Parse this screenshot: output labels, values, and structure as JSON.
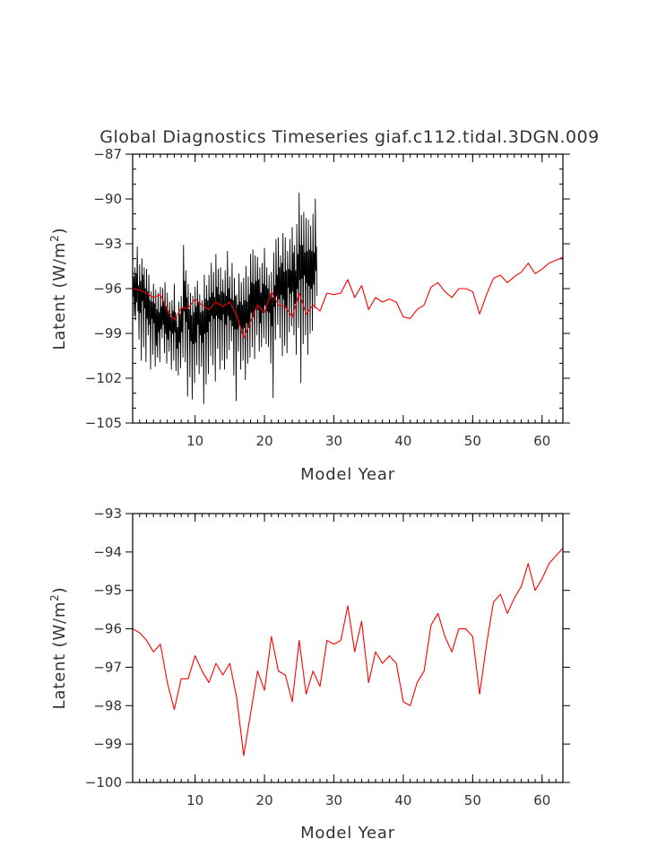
{
  "chart_data": [
    {
      "type": "line",
      "title": "Global Diagnostics Timeseries giaf.c112.tidal.3DGN.009",
      "xlabel": "Model Year",
      "ylabel": "Latent (W/m2)",
      "ylabel_main": "Latent (W/m",
      "ylabel_sup": "2",
      "ylabel_close": ")",
      "xlim": [
        1,
        63
      ],
      "ylim": [
        -105,
        -87
      ],
      "xticks": [
        10,
        20,
        30,
        40,
        50,
        60
      ],
      "yticks": [
        -105,
        -102,
        -99,
        -96,
        -93,
        -90,
        -87
      ],
      "xtick_labels": [
        "10",
        "20",
        "30",
        "40",
        "50",
        "60"
      ],
      "ytick_labels": [
        "−105",
        "−102",
        "−99",
        "−96",
        "−93",
        "−90",
        "−87"
      ],
      "grid": false,
      "series": [
        {
          "color": "#000000",
          "x_start": 1,
          "x_step": 0.0833,
          "values": [
            -94.3,
            -96.5,
            -95.2,
            -97.8,
            -94.6,
            -98.1,
            -95.0,
            -96.9,
            -93.2,
            -97.5,
            -95.8,
            -99.4,
            -94.4,
            -97.6,
            -95.5,
            -100.8,
            -94.0,
            -96.8,
            -95.1,
            -99.9,
            -94.6,
            -97.3,
            -96.0,
            -100.9,
            -94.7,
            -98.0,
            -96.2,
            -99.1,
            -95.1,
            -98.4,
            -96.8,
            -101.4,
            -96.2,
            -98.0,
            -96.9,
            -100.4,
            -95.7,
            -98.3,
            -97.0,
            -101.2,
            -96.1,
            -99.8,
            -97.4,
            -100.6,
            -96.3,
            -98.9,
            -97.6,
            -100.9,
            -95.9,
            -98.7,
            -97.2,
            -99.3,
            -96.0,
            -98.4,
            -96.9,
            -100.3,
            -95.6,
            -99.0,
            -97.3,
            -101.0,
            -96.3,
            -99.4,
            -97.6,
            -100.2,
            -96.9,
            -98.8,
            -97.9,
            -101.4,
            -96.8,
            -99.0,
            -97.5,
            -100.8,
            -95.7,
            -98.9,
            -97.6,
            -101.5,
            -97.8,
            -100.0,
            -98.6,
            -101.8,
            -96.9,
            -99.6,
            -97.7,
            -101.3,
            -96.5,
            -98.9,
            -97.3,
            -100.6,
            -93.1,
            -97.5,
            -95.5,
            -100.9,
            -94.8,
            -98.2,
            -96.6,
            -103.2,
            -95.7,
            -98.7,
            -97.4,
            -101.9,
            -96.3,
            -99.5,
            -97.8,
            -103.4,
            -96.5,
            -99.7,
            -97.6,
            -102.3,
            -95.9,
            -99.6,
            -97.2,
            -101.1,
            -95.5,
            -98.4,
            -96.9,
            -101.7,
            -96.4,
            -99.1,
            -97.6,
            -101.2,
            -96.8,
            -99.6,
            -97.5,
            -103.7,
            -95.1,
            -99.0,
            -96.7,
            -102.4,
            -95.8,
            -98.9,
            -96.8,
            -101.7,
            -95.1,
            -98.2,
            -96.6,
            -100.5,
            -94.3,
            -97.8,
            -96.3,
            -101.1,
            -94.9,
            -98.0,
            -96.6,
            -102.2,
            -93.7,
            -97.8,
            -95.9,
            -100.0,
            -94.7,
            -98.0,
            -96.4,
            -101.4,
            -94.6,
            -98.1,
            -96.2,
            -100.8,
            -95.4,
            -97.7,
            -96.3,
            -101.4,
            -94.8,
            -98.4,
            -96.5,
            -100.7,
            -93.5,
            -97.8,
            -96.0,
            -100.1,
            -95.2,
            -98.1,
            -96.7,
            -99.5,
            -94.3,
            -98.5,
            -96.8,
            -101.8,
            -95.3,
            -98.7,
            -96.5,
            -103.5,
            -96.4,
            -98.7,
            -97.1,
            -100.2,
            -95.0,
            -98.4,
            -96.9,
            -101.4,
            -95.6,
            -98.7,
            -97.1,
            -100.8,
            -95.3,
            -98.6,
            -96.8,
            -102.1,
            -94.5,
            -98.3,
            -96.9,
            -101.0,
            -95.2,
            -98.6,
            -96.4,
            -100.6,
            -93.7,
            -97.6,
            -95.6,
            -99.9,
            -93.4,
            -97.9,
            -95.7,
            -100.7,
            -93.8,
            -97.3,
            -95.5,
            -99.1,
            -93.9,
            -97.4,
            -95.4,
            -100.2,
            -94.6,
            -98.3,
            -96.3,
            -99.9,
            -94.3,
            -97.6,
            -95.7,
            -99.3,
            -93.3,
            -97.1,
            -95.8,
            -99.7,
            -94.6,
            -97.5,
            -96.0,
            -99.9,
            -95.1,
            -97.6,
            -96.4,
            -101.0,
            -94.9,
            -98.5,
            -96.6,
            -103.3,
            -93.6,
            -97.2,
            -95.8,
            -99.4,
            -92.7,
            -96.5,
            -95.1,
            -98.4,
            -92.6,
            -96.7,
            -94.6,
            -99.3,
            -93.8,
            -96.4,
            -94.3,
            -100.5,
            -92.3,
            -96.7,
            -94.9,
            -99.8,
            -92.6,
            -97.3,
            -94.8,
            -100.3,
            -93.5,
            -95.9,
            -94.7,
            -98.9,
            -92.7,
            -96.3,
            -94.8,
            -98.5,
            -91.9,
            -96.2,
            -93.6,
            -99.1,
            -93.1,
            -97.0,
            -94.8,
            -100.4,
            -91.7,
            -96.0,
            -93.7,
            -98.6,
            -89.6,
            -95.4,
            -93.1,
            -102.3,
            -91.1,
            -95.3,
            -93.1,
            -99.7,
            -90.9,
            -95.1,
            -93.6,
            -99.1,
            -91.3,
            -95.6,
            -93.5,
            -100.4,
            -91.4,
            -95.8,
            -93.4,
            -99.0,
            -91.8,
            -96.0,
            -93.5,
            -98.8,
            -91.0,
            -95.7,
            -93.6,
            -97.3,
            -90.0,
            -94.8,
            -93.2,
            -96.5
          ]
        },
        {
          "color": "#ff0000",
          "x": [
            1,
            2,
            3,
            4,
            5,
            6,
            7,
            8,
            9,
            10,
            11,
            12,
            13,
            14,
            15,
            16,
            17,
            18,
            19,
            20,
            21,
            22,
            23,
            24,
            25,
            26,
            27,
            28,
            29,
            30,
            31,
            32,
            33,
            34,
            35,
            36,
            37,
            38,
            39,
            40,
            41,
            42,
            43,
            44,
            45,
            46,
            47,
            48,
            49,
            50,
            51,
            52,
            53,
            54,
            55,
            56,
            57,
            58,
            59,
            60,
            61,
            62,
            63
          ],
          "values": [
            -96.0,
            -96.1,
            -96.3,
            -96.6,
            -96.4,
            -97.4,
            -98.1,
            -97.3,
            -97.3,
            -96.7,
            -97.1,
            -97.4,
            -96.9,
            -97.2,
            -96.9,
            -97.8,
            -99.3,
            -98.2,
            -97.1,
            -97.6,
            -96.2,
            -97.1,
            -97.2,
            -97.9,
            -96.3,
            -97.7,
            -97.1,
            -97.5,
            -96.3,
            -96.4,
            -96.3,
            -95.4,
            -96.6,
            -95.8,
            -97.4,
            -96.6,
            -96.9,
            -96.7,
            -96.9,
            -97.9,
            -98.0,
            -97.4,
            -97.1,
            -95.9,
            -95.6,
            -96.2,
            -96.6,
            -96.0,
            -96.0,
            -96.2,
            -97.7,
            -96.4,
            -95.3,
            -95.1,
            -95.6,
            -95.2,
            -94.9,
            -94.3,
            -95.0,
            -94.7,
            -94.3,
            -94.1,
            -93.9
          ]
        }
      ]
    },
    {
      "type": "line",
      "title": "",
      "xlabel": "Model Year",
      "ylabel": "Latent (W/m2)",
      "ylabel_main": "Latent (W/m",
      "ylabel_sup": "2",
      "ylabel_close": ")",
      "xlim": [
        1,
        63
      ],
      "ylim": [
        -100,
        -93
      ],
      "xticks": [
        10,
        20,
        30,
        40,
        50,
        60
      ],
      "yticks": [
        -100,
        -99,
        -98,
        -97,
        -96,
        -95,
        -94,
        -93
      ],
      "xtick_labels": [
        "10",
        "20",
        "30",
        "40",
        "50",
        "60"
      ],
      "ytick_labels": [
        "−100",
        "−99",
        "−98",
        "−97",
        "−96",
        "−95",
        "−94",
        "−93"
      ],
      "grid": false,
      "series": [
        {
          "color": "#ff0000",
          "x": [
            1,
            2,
            3,
            4,
            5,
            6,
            7,
            8,
            9,
            10,
            11,
            12,
            13,
            14,
            15,
            16,
            17,
            18,
            19,
            20,
            21,
            22,
            23,
            24,
            25,
            26,
            27,
            28,
            29,
            30,
            31,
            32,
            33,
            34,
            35,
            36,
            37,
            38,
            39,
            40,
            41,
            42,
            43,
            44,
            45,
            46,
            47,
            48,
            49,
            50,
            51,
            52,
            53,
            54,
            55,
            56,
            57,
            58,
            59,
            60,
            61,
            62,
            63
          ],
          "values": [
            -96.0,
            -96.1,
            -96.3,
            -96.6,
            -96.4,
            -97.4,
            -98.1,
            -97.3,
            -97.3,
            -96.7,
            -97.1,
            -97.4,
            -96.9,
            -97.2,
            -96.9,
            -97.8,
            -99.3,
            -98.2,
            -97.1,
            -97.6,
            -96.2,
            -97.1,
            -97.2,
            -97.9,
            -96.3,
            -97.7,
            -97.1,
            -97.5,
            -96.3,
            -96.4,
            -96.3,
            -95.4,
            -96.6,
            -95.8,
            -97.4,
            -96.6,
            -96.9,
            -96.7,
            -96.9,
            -97.9,
            -98.0,
            -97.4,
            -97.1,
            -95.9,
            -95.6,
            -96.2,
            -96.6,
            -96.0,
            -96.0,
            -96.2,
            -97.7,
            -96.4,
            -95.3,
            -95.1,
            -95.6,
            -95.2,
            -94.9,
            -94.3,
            -95.0,
            -94.7,
            -94.3,
            -94.1,
            -93.9
          ]
        }
      ]
    }
  ]
}
